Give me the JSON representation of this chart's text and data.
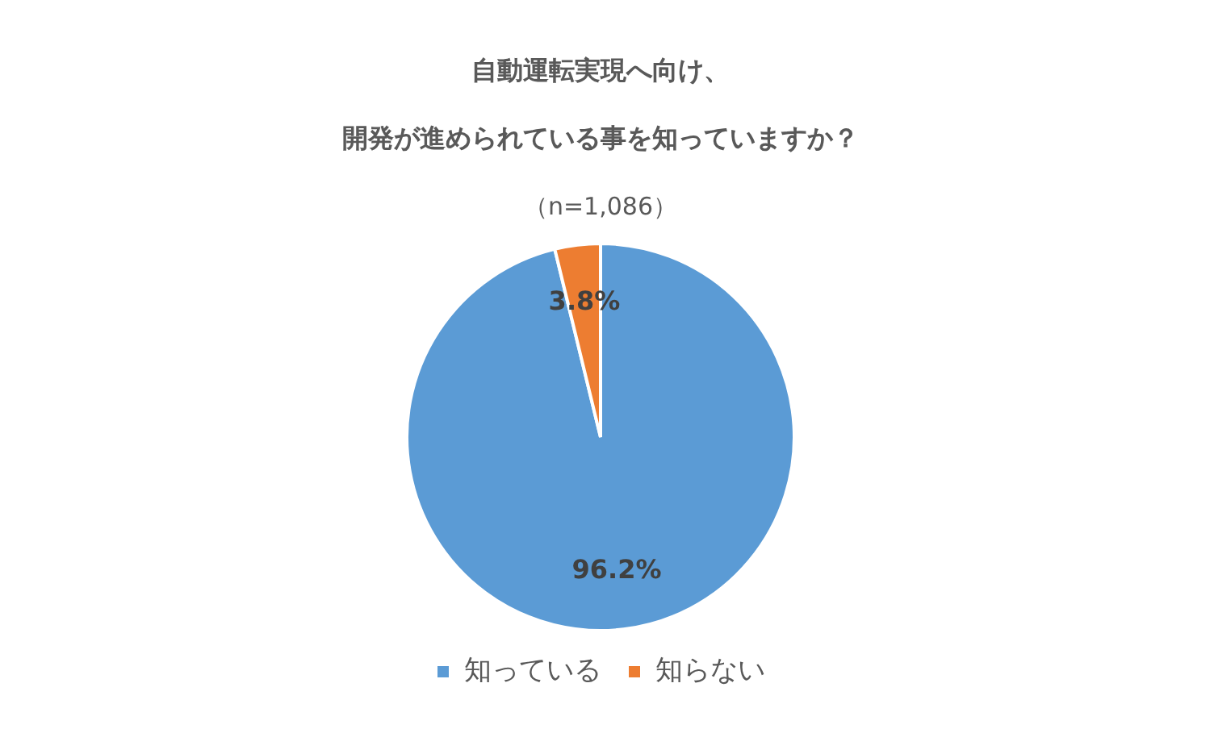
{
  "chart_data": {
    "type": "pie",
    "title": "自動運転実現へ向け、開発が進められている事を知っていますか？",
    "subtitle": "（n=1,086）",
    "categories": [
      "知っている",
      "知らない"
    ],
    "values": [
      96.2,
      3.8
    ],
    "colors": [
      "#5b9bd5",
      "#ed7d31"
    ],
    "value_labels": [
      "96.2%",
      "3.8%"
    ],
    "legend": "bottom"
  }
}
